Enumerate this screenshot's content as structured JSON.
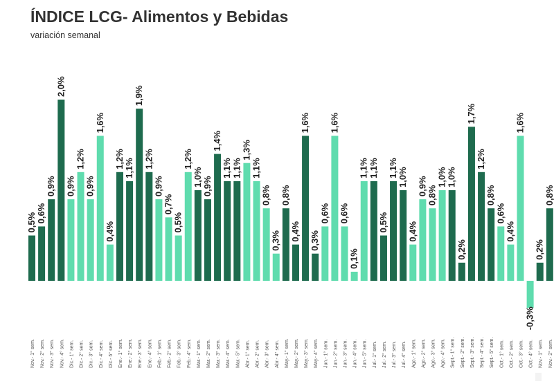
{
  "chart_data": {
    "type": "bar",
    "title": "ÍNDICE LCG- Alimentos y Bebidas",
    "subtitle": "variación semanal",
    "xlabel": "",
    "ylabel": "",
    "ylim": [
      -0.4,
      2.2
    ],
    "grid": false,
    "value_suffix": "%",
    "colors": {
      "dark": "#1e6b4e",
      "light": "#5fdcae"
    },
    "categories": [
      "Nov.- 1° sem.",
      "Nov.- 2° sem.",
      "Nov.- 3° sem.",
      "Nov.- 4° sem.",
      "Dic.- 1° sem.",
      "Dic.- 2° sem.",
      "Dic.- 3° sem.",
      "Dic.- 4° sem.",
      "Dic.- 5° sem.",
      "Ene.- 1° sem.",
      "Ene.- 2° sem.",
      "Ene.- 3° sem.",
      "Ene.- 4° sem.",
      "Feb.- 1° sem.",
      "Feb.- 2° sem.",
      "Feb.- 3° sem.",
      "Feb.- 4° sem.",
      "Mar.- 1° sem.",
      "Mar.- 2° sem.",
      "Mar.- 3° sem.",
      "Mar.- 4° sem.",
      "Mar.- 5° sem.",
      "Abr.- 1° sem.",
      "Abr.- 2° sem.",
      "Abr.- 3° sem.",
      "Abr.- 4° sem.",
      "May.- 1° sem.",
      "May.- 2° sem.",
      "May.- 3° sem.",
      "May.- 4° sem.",
      "Jun.- 1° sem.",
      "Jun.- 2° sem.",
      "Jun.- 3° sem.",
      "Jun.- 4° sem.",
      "Jun.- 5° sem.",
      "Jul.- 1° sem.",
      "Jul.- 2° sem.",
      "Jul.- 3° sem.",
      "Jul.- 4° sem.",
      "Ago.- 1° sem.",
      "Ago.- 2° sem.",
      "Ago.- 3° sem.",
      "Ago.- 4° sem.",
      "Sept.- 1° sem.",
      "Sept.- 2° sem.",
      "Sept.- 3° sem.",
      "Sept.- 4° sem.",
      "Sept.- 5° sem.",
      "Oct.- 1° sem.",
      "Oct.- 2° sem.",
      "Oct.- 3° sem.",
      "Oct.- 4° sem.",
      "Nov.- 1° sem.",
      "Nov.- 2° sem."
    ],
    "values": [
      0.5,
      0.6,
      0.9,
      2.0,
      0.9,
      1.2,
      0.9,
      1.6,
      0.4,
      1.2,
      1.1,
      1.9,
      1.2,
      0.9,
      0.7,
      0.5,
      1.2,
      1.0,
      0.9,
      1.4,
      1.1,
      1.1,
      1.3,
      1.1,
      0.8,
      0.3,
      0.8,
      0.4,
      1.6,
      0.3,
      0.6,
      1.6,
      0.6,
      0.1,
      1.1,
      1.1,
      0.5,
      1.1,
      1.0,
      0.4,
      0.9,
      0.8,
      1.0,
      1.0,
      0.2,
      1.7,
      1.2,
      0.8,
      0.6,
      0.4,
      1.6,
      -0.3,
      0.2,
      0.8
    ],
    "value_labels": [
      "0,5%",
      "0,6%",
      "0,9%",
      "2,0%",
      "0,9%",
      "1,2%",
      "0,9%",
      "1,6%",
      "0,4%",
      "1,2%",
      "1,1%",
      "1,9%",
      "1,2%",
      "0,9%",
      "0,7%",
      "0,5%",
      "1,2%",
      "1,0%",
      "0,9%",
      "1,4%",
      "1,1%",
      "1,1%",
      "1,3%",
      "1,1%",
      "0,8%",
      "0,3%",
      "0,8%",
      "0,4%",
      "1,6%",
      "0,3%",
      "0,6%",
      "1,6%",
      "0,6%",
      "0,1%",
      "1,1%",
      "1,1%",
      "0,5%",
      "1,1%",
      "1,0%",
      "0,4%",
      "0,9%",
      "0,8%",
      "1,0%",
      "1,0%",
      "0,2%",
      "1,7%",
      "1,2%",
      "0,8%",
      "0,6%",
      "0,4%",
      "1,6%",
      "-0,3%",
      "0,2%",
      "0,8%"
    ],
    "bar_tones": [
      "dark",
      "dark",
      "dark",
      "dark",
      "light",
      "light",
      "light",
      "light",
      "light",
      "dark",
      "dark",
      "dark",
      "dark",
      "light",
      "light",
      "light",
      "light",
      "dark",
      "dark",
      "dark",
      "dark",
      "dark",
      "light",
      "light",
      "light",
      "light",
      "dark",
      "dark",
      "dark",
      "dark",
      "light",
      "light",
      "light",
      "light",
      "light",
      "dark",
      "dark",
      "dark",
      "dark",
      "light",
      "light",
      "light",
      "light",
      "dark",
      "dark",
      "dark",
      "dark",
      "dark",
      "light",
      "light",
      "light",
      "light",
      "dark",
      "dark"
    ]
  }
}
